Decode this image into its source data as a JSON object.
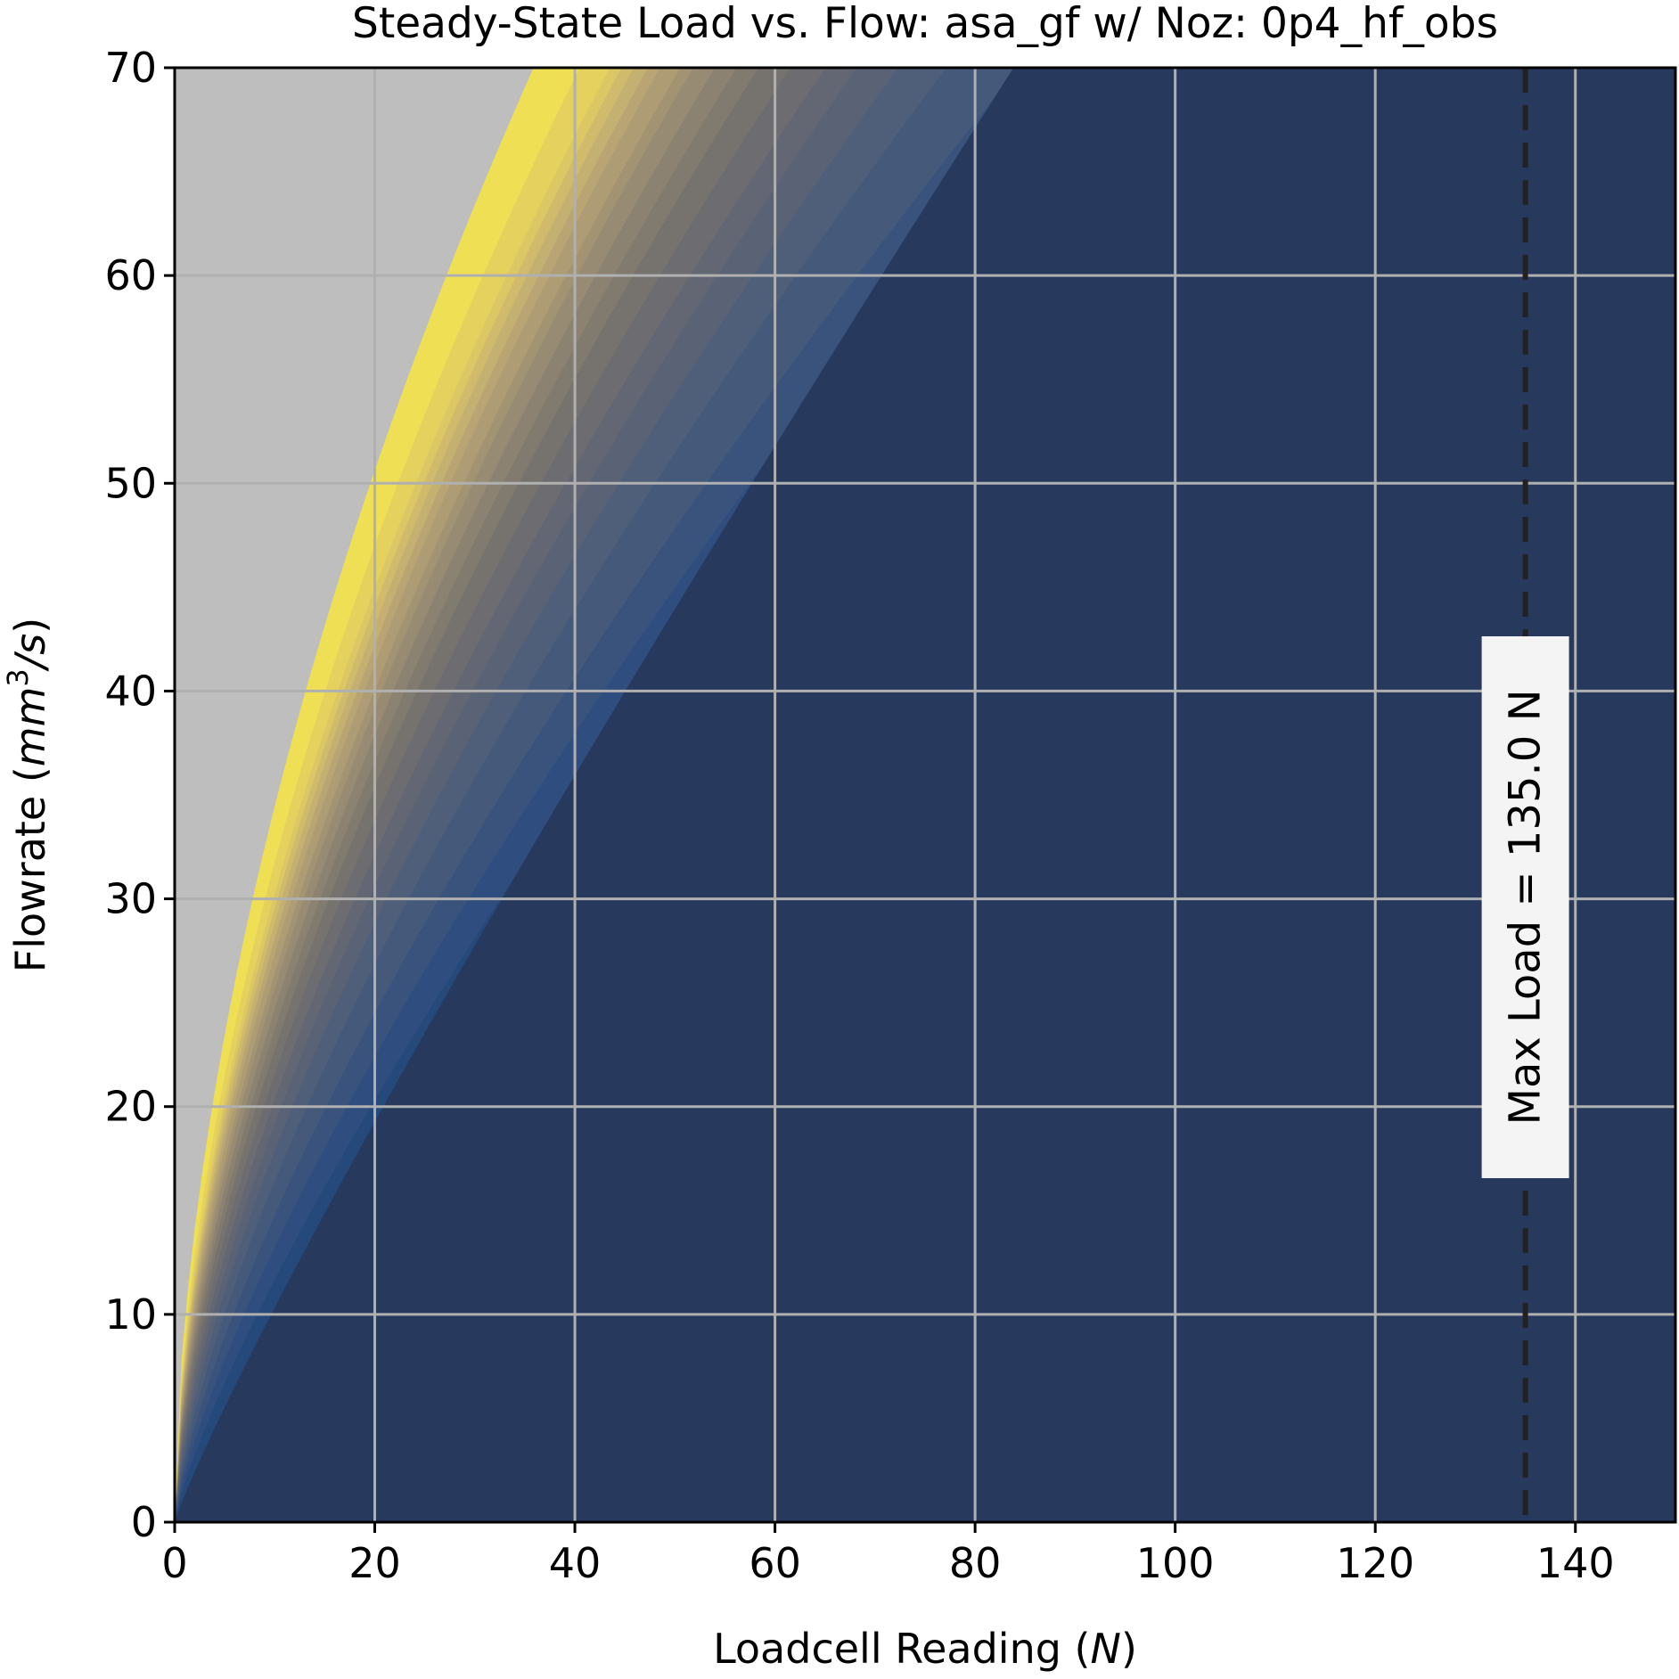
{
  "chart_data": {
    "type": "area",
    "title": "Steady-State Load vs. Flow: asa_gf w/ Noz: 0p4_hf_obs",
    "xlabel": "Loadcell Reading",
    "xlabel_unit": "N",
    "ylabel": "Flowrate",
    "ylabel_unit_base": "mm",
    "ylabel_unit_exp": "3",
    "ylabel_unit_tail": "/s",
    "xlim": [
      0,
      150
    ],
    "ylim": [
      0,
      70
    ],
    "xticks": [
      0,
      20,
      40,
      60,
      80,
      100,
      120,
      140
    ],
    "yticks": [
      0,
      10,
      20,
      30,
      40,
      50,
      60,
      70
    ],
    "grid": true,
    "curve_model": "y = a * x^p",
    "bands": [
      {
        "a": 1.3,
        "p": 0.9,
        "color": "#273a5e"
      },
      {
        "a": 1.85,
        "p": 0.8,
        "color": "#24497a"
      },
      {
        "a": 2.3,
        "p": 0.76,
        "color": "#2f4e7f"
      },
      {
        "a": 2.75,
        "p": 0.73,
        "color": "#39537d"
      },
      {
        "a": 3.2,
        "p": 0.71,
        "color": "#45597b"
      },
      {
        "a": 3.65,
        "p": 0.69,
        "color": "#4f5e79"
      },
      {
        "a": 4.05,
        "p": 0.675,
        "color": "#5a6276"
      },
      {
        "a": 4.45,
        "p": 0.66,
        "color": "#636774"
      },
      {
        "a": 4.85,
        "p": 0.648,
        "color": "#6c6c71"
      },
      {
        "a": 5.25,
        "p": 0.637,
        "color": "#76736f"
      },
      {
        "a": 5.6,
        "p": 0.627,
        "color": "#807a6f"
      },
      {
        "a": 5.95,
        "p": 0.618,
        "color": "#8b8272"
      },
      {
        "a": 6.3,
        "p": 0.61,
        "color": "#978b74"
      },
      {
        "a": 6.6,
        "p": 0.602,
        "color": "#a29373"
      },
      {
        "a": 6.95,
        "p": 0.595,
        "color": "#ae9c74"
      },
      {
        "a": 7.25,
        "p": 0.588,
        "color": "#b9a573"
      },
      {
        "a": 7.55,
        "p": 0.582,
        "color": "#c4b070"
      },
      {
        "a": 7.85,
        "p": 0.576,
        "color": "#d0bb6c"
      },
      {
        "a": 8.15,
        "p": 0.57,
        "color": "#dcc765"
      },
      {
        "a": 8.65,
        "p": 0.565,
        "color": "#e4d15e"
      },
      {
        "a": 9.6,
        "p": 0.555,
        "color": "#efdf55"
      }
    ],
    "background_color": "#bebebe",
    "annotation": {
      "type": "vline",
      "x": 135.0,
      "label": "Max Load = 135.0 N",
      "style": "dashed",
      "color": "#222222"
    }
  }
}
